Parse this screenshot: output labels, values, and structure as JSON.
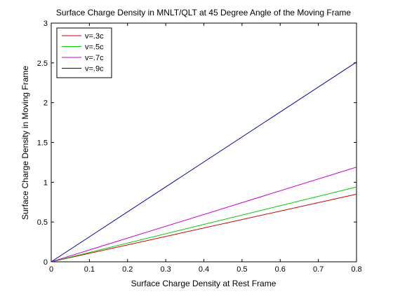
{
  "chart_data": {
    "type": "line",
    "title": "Surface Charge Density in MNLT/QLT at 45 Degree Angle of the Moving Frame",
    "xlabel": "Surface Charge Density at Rest Frame",
    "ylabel": "Surface Charge Density in Moving Frame",
    "xlim": [
      0,
      0.8
    ],
    "ylim": [
      0,
      3
    ],
    "xticks": [
      0,
      0.1,
      0.2,
      0.3,
      0.4,
      0.5,
      0.6,
      0.7,
      0.8
    ],
    "xtick_labels": [
      "0",
      "0.1",
      "0.2",
      "0.3",
      "0.4",
      "0.5",
      "0.6",
      "0.7",
      "0.8"
    ],
    "yticks": [
      0,
      0.5,
      1,
      1.5,
      2,
      2.5,
      3
    ],
    "ytick_labels": [
      "0",
      "0.5",
      "1",
      "1.5",
      "2",
      "2.5",
      "3"
    ],
    "grid": false,
    "legend_position": "top-left",
    "series": [
      {
        "name": "v=.3c",
        "color": "#cc0000",
        "x": [
          0,
          0.8
        ],
        "y": [
          0,
          0.85
        ]
      },
      {
        "name": "v=.5c",
        "color": "#00cc00",
        "x": [
          0,
          0.8
        ],
        "y": [
          0,
          0.94
        ]
      },
      {
        "name": "v=.7c",
        "color": "#cc00cc",
        "x": [
          0,
          0.8
        ],
        "y": [
          0,
          1.19
        ]
      },
      {
        "name": "v=.9c",
        "color": "#0000aa",
        "x": [
          0,
          0.8
        ],
        "y": [
          0,
          2.51
        ]
      }
    ]
  }
}
